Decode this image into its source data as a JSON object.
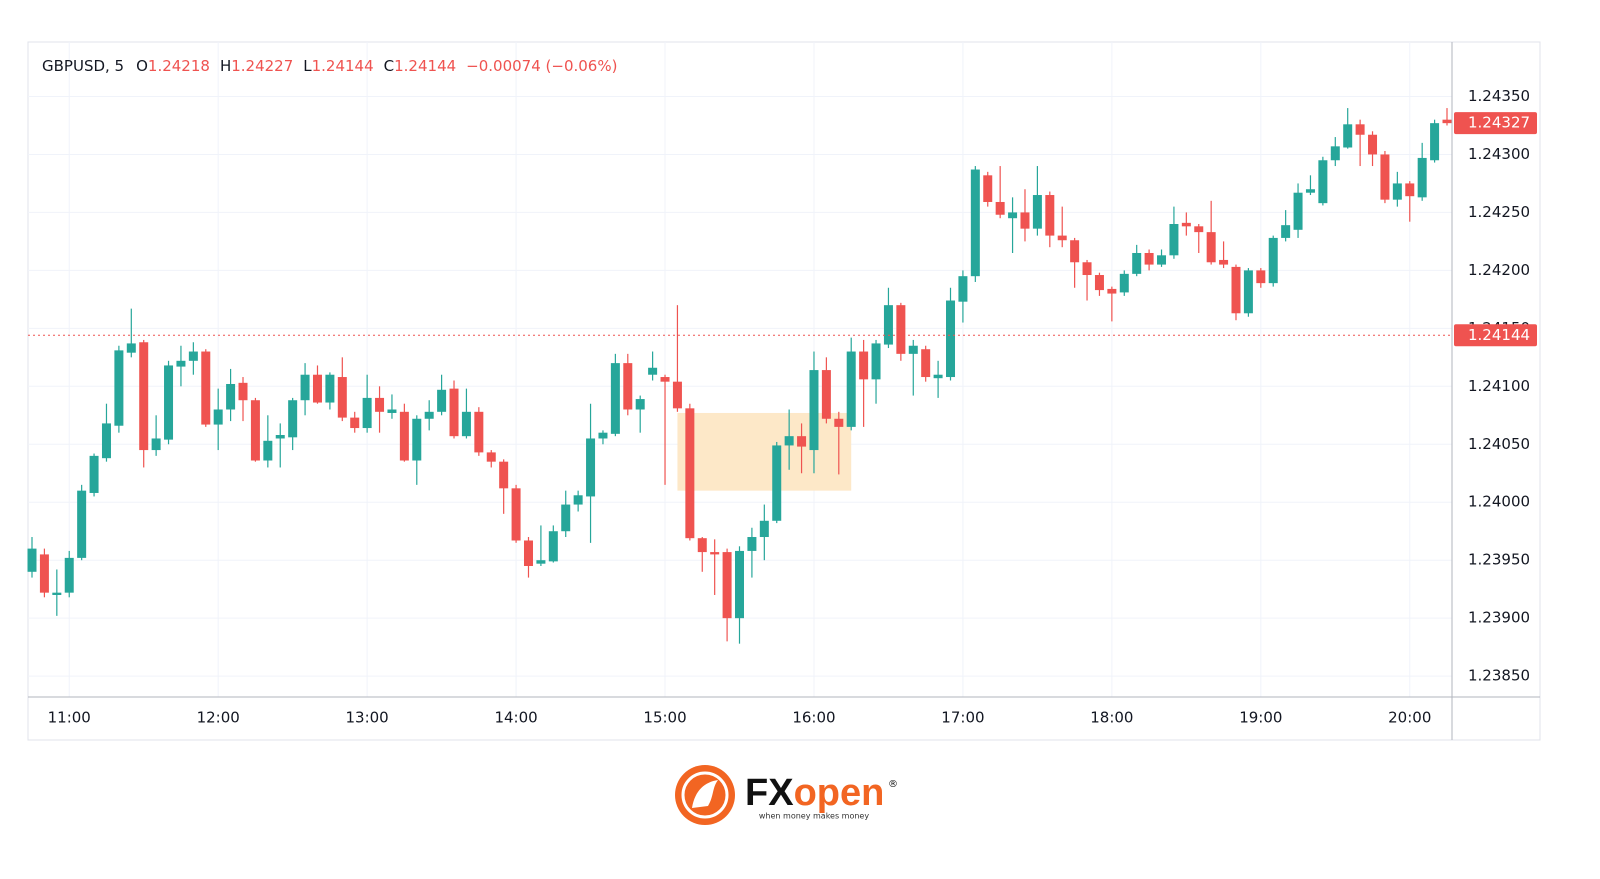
{
  "chart_data": {
    "type": "candlestick",
    "symbol": "GBPUSD, 5",
    "ohlc": [
      {
        "label": "O",
        "value": 1.24218
      },
      {
        "label": "H",
        "value": 1.24227
      },
      {
        "label": "L",
        "value": 1.24144
      },
      {
        "label": "C",
        "value": 1.24144
      }
    ],
    "change": "−0.00074 (−0.06%)",
    "up_color": "#26a69a",
    "down_color": "#ef5350",
    "grid": true,
    "x": [
      "10:45",
      "10:50",
      "10:55",
      "11:00",
      "11:05",
      "11:10",
      "11:15",
      "11:20",
      "11:25",
      "11:30",
      "11:35",
      "11:40",
      "11:45",
      "11:50",
      "11:55",
      "12:00",
      "12:05",
      "12:10",
      "12:15",
      "12:20",
      "12:25",
      "12:30",
      "12:35",
      "12:40",
      "12:45",
      "12:50",
      "12:55",
      "13:00",
      "13:05",
      "13:10",
      "13:15",
      "13:20",
      "13:25",
      "13:30",
      "13:35",
      "13:40",
      "13:45",
      "13:50",
      "13:55",
      "14:00",
      "14:05",
      "14:10",
      "14:15",
      "14:20",
      "14:25",
      "14:30",
      "14:35",
      "14:40",
      "14:45",
      "14:50",
      "14:55",
      "15:00",
      "15:05",
      "15:10",
      "15:15",
      "15:20",
      "15:25",
      "15:30",
      "15:35",
      "15:40",
      "15:45",
      "15:50",
      "15:55",
      "16:00",
      "16:05",
      "16:10",
      "16:15",
      "16:20",
      "16:25",
      "16:30",
      "16:35",
      "16:40",
      "16:45",
      "16:50",
      "16:55",
      "17:00",
      "17:05",
      "17:10",
      "17:15",
      "17:20",
      "17:25",
      "17:30",
      "17:35",
      "17:40",
      "17:45",
      "17:50",
      "17:55",
      "18:00",
      "18:05",
      "18:10",
      "18:15",
      "18:20",
      "18:25",
      "18:30",
      "18:35",
      "18:40",
      "18:45",
      "18:50",
      "18:55",
      "19:00",
      "19:05",
      "19:10",
      "19:15",
      "19:20",
      "19:25",
      "19:30",
      "19:35",
      "19:40",
      "19:45",
      "19:50",
      "19:55",
      "20:00",
      "20:05",
      "20:10",
      "20:15"
    ],
    "open": [
      1.2394,
      1.23955,
      1.2392,
      1.23922,
      1.23952,
      1.24008,
      1.24038,
      1.24066,
      1.24129,
      1.24138,
      1.24045,
      1.24054,
      1.24117,
      1.24122,
      1.2413,
      1.24067,
      1.2408,
      1.24103,
      1.24088,
      1.24036,
      1.24055,
      1.24056,
      1.24088,
      1.2411,
      1.24086,
      1.24108,
      1.24073,
      1.24064,
      1.2409,
      1.24077,
      1.24078,
      1.24036,
      1.24072,
      1.24078,
      1.24098,
      1.24057,
      1.24078,
      1.24043,
      1.24035,
      1.24012,
      1.23967,
      1.23947,
      1.23949,
      1.23975,
      1.23998,
      1.24005,
      1.24055,
      1.24059,
      1.2412,
      1.2408,
      1.2411,
      1.24108,
      1.24104,
      1.24081,
      1.23969,
      1.23957,
      1.23957,
      1.239,
      1.23958,
      1.2397,
      1.23984,
      1.24049,
      1.24057,
      1.24045,
      1.24114,
      1.24072,
      1.24065,
      1.2413,
      1.24106,
      1.24136,
      1.2417,
      1.24128,
      1.24132,
      1.24107,
      1.24108,
      1.24173,
      1.24195,
      1.24282,
      1.24259,
      1.24245,
      1.2425,
      1.24236,
      1.24265,
      1.2423,
      1.24226,
      1.24207,
      1.24196,
      1.24184,
      1.24181,
      1.24197,
      1.24215,
      1.24205,
      1.24213,
      1.24241,
      1.24238,
      1.24233,
      1.24209,
      1.24203,
      1.24163,
      1.242,
      1.24189,
      1.24228,
      1.24235,
      1.24267,
      1.24258,
      1.24295,
      1.24306,
      1.24326,
      1.24317,
      1.243,
      1.24261,
      1.24275,
      1.24263,
      1.24295,
      1.2433
    ],
    "high": [
      1.2397,
      1.2396,
      1.23942,
      1.23958,
      1.24015,
      1.24042,
      1.24085,
      1.24135,
      1.24167,
      1.2414,
      1.24075,
      1.24122,
      1.24135,
      1.24138,
      1.24132,
      1.24098,
      1.24115,
      1.24108,
      1.2409,
      1.24075,
      1.24068,
      1.2409,
      1.2412,
      1.24118,
      1.24112,
      1.24125,
      1.24078,
      1.2411,
      1.241,
      1.24093,
      1.24085,
      1.24075,
      1.24088,
      1.2411,
      1.24105,
      1.24098,
      1.24082,
      1.24045,
      1.24037,
      1.24015,
      1.2397,
      1.2398,
      1.2398,
      1.2401,
      1.2401,
      1.24085,
      1.24062,
      1.24128,
      1.24128,
      1.24092,
      1.2413,
      1.2411,
      1.2417,
      1.24085,
      1.2397,
      1.23968,
      1.2396,
      1.23962,
      1.23978,
      1.23998,
      1.24052,
      1.2408,
      1.24068,
      1.2413,
      1.24125,
      1.24078,
      1.24142,
      1.2414,
      1.2414,
      1.24185,
      1.24172,
      1.2414,
      1.24135,
      1.24122,
      1.24185,
      1.242,
      1.2429,
      1.24285,
      1.2429,
      1.24263,
      1.2427,
      1.2429,
      1.24268,
      1.24255,
      1.24228,
      1.24209,
      1.24198,
      1.24186,
      1.242,
      1.24222,
      1.24218,
      1.24218,
      1.24255,
      1.2425,
      1.2424,
      1.2426,
      1.24225,
      1.24205,
      1.24202,
      1.24202,
      1.2423,
      1.24252,
      1.24275,
      1.24282,
      1.24298,
      1.24315,
      1.2434,
      1.2433,
      1.2432,
      1.24303,
      1.24285,
      1.24277,
      1.2431,
      1.2433,
      1.2434
    ],
    "low": [
      1.23935,
      1.23918,
      1.23902,
      1.23918,
      1.2395,
      1.24005,
      1.24035,
      1.2406,
      1.24125,
      1.2403,
      1.2404,
      1.2405,
      1.241,
      1.2411,
      1.24065,
      1.24045,
      1.2407,
      1.2407,
      1.24035,
      1.2403,
      1.2403,
      1.24045,
      1.24075,
      1.24085,
      1.2408,
      1.2407,
      1.2406,
      1.2406,
      1.2406,
      1.24072,
      1.24035,
      1.24015,
      1.24062,
      1.24075,
      1.24055,
      1.24055,
      1.2404,
      1.2403,
      1.2399,
      1.23965,
      1.23935,
      1.23945,
      1.23948,
      1.2397,
      1.23992,
      1.23965,
      1.2405,
      1.24057,
      1.24075,
      1.2406,
      1.24105,
      1.24015,
      1.24078,
      1.23967,
      1.2394,
      1.2392,
      1.2388,
      1.23878,
      1.23935,
      1.2395,
      1.23982,
      1.24028,
      1.24025,
      1.24025,
      1.24068,
      1.24024,
      1.24062,
      1.24065,
      1.24085,
      1.24133,
      1.24122,
      1.24092,
      1.24104,
      1.2409,
      1.24105,
      1.24155,
      1.2419,
      1.24255,
      1.24245,
      1.24215,
      1.24225,
      1.2423,
      1.2422,
      1.2422,
      1.24185,
      1.24174,
      1.24178,
      1.24156,
      1.24178,
      1.24195,
      1.242,
      1.24203,
      1.2421,
      1.2423,
      1.24215,
      1.24205,
      1.24202,
      1.24157,
      1.2416,
      1.24185,
      1.24186,
      1.24225,
      1.24228,
      1.24265,
      1.24256,
      1.2429,
      1.24305,
      1.2429,
      1.2429,
      1.24258,
      1.24255,
      1.24242,
      1.2426,
      1.24293,
      1.24325
    ],
    "close": [
      1.2396,
      1.23922,
      1.23922,
      1.23952,
      1.2401,
      1.2404,
      1.24068,
      1.24131,
      1.24137,
      1.24045,
      1.24055,
      1.24118,
      1.24122,
      1.2413,
      1.24067,
      1.2408,
      1.24102,
      1.24088,
      1.24036,
      1.24053,
      1.24058,
      1.24088,
      1.2411,
      1.24086,
      1.2411,
      1.24073,
      1.24064,
      1.2409,
      1.24078,
      1.2408,
      1.24036,
      1.24072,
      1.24078,
      1.24097,
      1.24057,
      1.24078,
      1.24043,
      1.24035,
      1.24012,
      1.23967,
      1.23945,
      1.2395,
      1.23975,
      1.23998,
      1.24006,
      1.24055,
      1.2406,
      1.2412,
      1.2408,
      1.24089,
      1.24116,
      1.24104,
      1.24081,
      1.23969,
      1.23957,
      1.23955,
      1.239,
      1.23958,
      1.2397,
      1.23984,
      1.24049,
      1.24057,
      1.24048,
      1.24114,
      1.24072,
      1.24065,
      1.2413,
      1.24106,
      1.24137,
      1.2417,
      1.24128,
      1.24135,
      1.24108,
      1.2411,
      1.24174,
      1.24195,
      1.24287,
      1.24259,
      1.24248,
      1.2425,
      1.24236,
      1.24265,
      1.2423,
      1.24226,
      1.24207,
      1.24196,
      1.24183,
      1.2418,
      1.24197,
      1.24215,
      1.24205,
      1.24213,
      1.2424,
      1.24238,
      1.24233,
      1.24207,
      1.24205,
      1.24163,
      1.242,
      1.24189,
      1.24228,
      1.24239,
      1.24267,
      1.2427,
      1.24295,
      1.24307,
      1.24326,
      1.24317,
      1.243,
      1.24261,
      1.24275,
      1.24264,
      1.24297,
      1.24327,
      1.24327
    ],
    "ylim": [
      1.23832,
      1.24397
    ],
    "yticks": [
      {
        "value": 1.2385,
        "label": "1.23850"
      },
      {
        "value": 1.239,
        "label": "1.23900"
      },
      {
        "value": 1.2395,
        "label": "1.23950"
      },
      {
        "value": 1.24,
        "label": "1.24000"
      },
      {
        "value": 1.2405,
        "label": "1.24050"
      },
      {
        "value": 1.241,
        "label": "1.24100"
      },
      {
        "value": 1.2415,
        "label": "1.24150"
      },
      {
        "value": 1.242,
        "label": "1.24200"
      },
      {
        "value": 1.2425,
        "label": "1.24250"
      },
      {
        "value": 1.243,
        "label": "1.24300"
      },
      {
        "value": 1.2435,
        "label": "1.24350"
      }
    ],
    "xticks": [
      "11:00",
      "12:00",
      "13:00",
      "14:00",
      "15:00",
      "16:00",
      "17:00",
      "18:00",
      "19:00",
      "20:00"
    ],
    "price_markers": [
      {
        "value": 1.24327,
        "color": "#ef5350",
        "line": false
      },
      {
        "value": 1.24144,
        "color": "#ef5350",
        "line": true
      }
    ],
    "zones": [
      {
        "x": [
          "15:05",
          "16:15"
        ],
        "y": [
          1.2401,
          1.24077
        ],
        "color": "#fde8c8"
      }
    ]
  },
  "branding": {
    "wordmark": [
      "FX",
      "open"
    ],
    "registered": "®",
    "tagline": "when money makes money"
  }
}
